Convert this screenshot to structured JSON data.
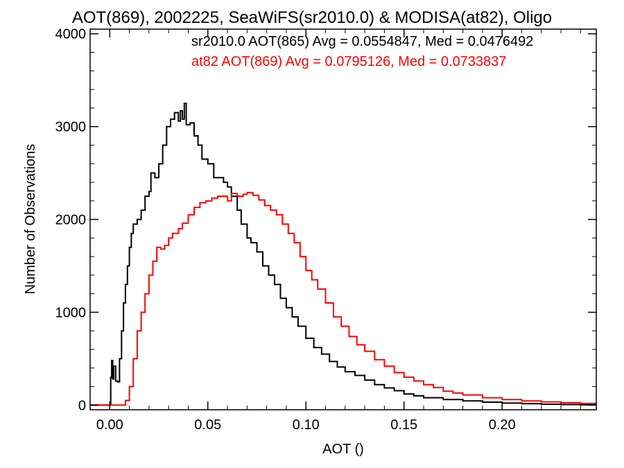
{
  "chart_data": {
    "type": "line",
    "title": "AOT(869), 2002225, SeaWiFS(sr2010.0) & MODISA(at82), Oligo",
    "xlabel": "AOT ()",
    "ylabel": "Number of Observations",
    "xlim": [
      -0.01,
      0.248
    ],
    "ylim": [
      -50,
      4050
    ],
    "xticks": [
      0.0,
      0.05,
      0.1,
      0.15,
      0.2
    ],
    "xtick_labels": [
      "0.00",
      "0.05",
      "0.10",
      "0.15",
      "0.20"
    ],
    "yticks": [
      0,
      1000,
      2000,
      3000,
      4000
    ],
    "ytick_labels": [
      "0",
      "1000",
      "2000",
      "3000",
      "4000"
    ],
    "grid": false,
    "series": [
      {
        "name": "sr2010.0",
        "color": "#000000",
        "label": "sr2010.0 AOT(865) Avg = 0.0554847, Med = 0.0476492",
        "points": [
          [
            -0.0095,
            0
          ],
          [
            0.0,
            0
          ],
          [
            0.0005,
            300
          ],
          [
            0.001,
            480
          ],
          [
            0.0015,
            280
          ],
          [
            0.002,
            420
          ],
          [
            0.003,
            260
          ],
          [
            0.004,
            250
          ],
          [
            0.005,
            500
          ],
          [
            0.006,
            800
          ],
          [
            0.007,
            1100
          ],
          [
            0.008,
            1300
          ],
          [
            0.009,
            1500
          ],
          [
            0.01,
            1700
          ],
          [
            0.011,
            1850
          ],
          [
            0.012,
            1950
          ],
          [
            0.014,
            2000
          ],
          [
            0.016,
            2100
          ],
          [
            0.018,
            2250
          ],
          [
            0.02,
            2300
          ],
          [
            0.021,
            2500
          ],
          [
            0.023,
            2450
          ],
          [
            0.025,
            2600
          ],
          [
            0.027,
            2800
          ],
          [
            0.029,
            3000
          ],
          [
            0.031,
            3080
          ],
          [
            0.033,
            3150
          ],
          [
            0.035,
            3060
          ],
          [
            0.036,
            3170
          ],
          [
            0.037,
            3080
          ],
          [
            0.038,
            3250
          ],
          [
            0.039,
            3020
          ],
          [
            0.041,
            3040
          ],
          [
            0.043,
            2900
          ],
          [
            0.045,
            2800
          ],
          [
            0.047,
            2650
          ],
          [
            0.05,
            2600
          ],
          [
            0.053,
            2450
          ],
          [
            0.055,
            2450
          ],
          [
            0.058,
            2400
          ],
          [
            0.06,
            2350
          ],
          [
            0.062,
            2250
          ],
          [
            0.065,
            2100
          ],
          [
            0.067,
            1950
          ],
          [
            0.07,
            1800
          ],
          [
            0.072,
            1750
          ],
          [
            0.075,
            1650
          ],
          [
            0.078,
            1500
          ],
          [
            0.081,
            1400
          ],
          [
            0.084,
            1300
          ],
          [
            0.087,
            1150
          ],
          [
            0.09,
            1050
          ],
          [
            0.093,
            950
          ],
          [
            0.096,
            850
          ],
          [
            0.1,
            720
          ],
          [
            0.104,
            620
          ],
          [
            0.108,
            550
          ],
          [
            0.112,
            470
          ],
          [
            0.116,
            410
          ],
          [
            0.12,
            360
          ],
          [
            0.125,
            320
          ],
          [
            0.13,
            270
          ],
          [
            0.135,
            220
          ],
          [
            0.14,
            185
          ],
          [
            0.145,
            155
          ],
          [
            0.15,
            120
          ],
          [
            0.155,
            100
          ],
          [
            0.16,
            80
          ],
          [
            0.17,
            60
          ],
          [
            0.18,
            45
          ],
          [
            0.19,
            32
          ],
          [
            0.2,
            22
          ],
          [
            0.21,
            15
          ],
          [
            0.22,
            10
          ],
          [
            0.23,
            6
          ],
          [
            0.24,
            3
          ],
          [
            0.248,
            2
          ]
        ]
      },
      {
        "name": "at82",
        "color": "#ff0000",
        "label": "at82 AOT(869) Avg = 0.0795126, Med = 0.0733837",
        "points": [
          [
            -0.0095,
            0
          ],
          [
            0.007,
            0
          ],
          [
            0.008,
            50
          ],
          [
            0.01,
            200
          ],
          [
            0.012,
            500
          ],
          [
            0.014,
            800
          ],
          [
            0.016,
            1000
          ],
          [
            0.018,
            1200
          ],
          [
            0.02,
            1400
          ],
          [
            0.022,
            1550
          ],
          [
            0.024,
            1700
          ],
          [
            0.026,
            1680
          ],
          [
            0.028,
            1720
          ],
          [
            0.03,
            1800
          ],
          [
            0.032,
            1850
          ],
          [
            0.035,
            1900
          ],
          [
            0.037,
            1960
          ],
          [
            0.04,
            2050
          ],
          [
            0.043,
            2130
          ],
          [
            0.046,
            2180
          ],
          [
            0.049,
            2200
          ],
          [
            0.052,
            2230
          ],
          [
            0.055,
            2250
          ],
          [
            0.058,
            2250
          ],
          [
            0.06,
            2200
          ],
          [
            0.062,
            2280
          ],
          [
            0.065,
            2250
          ],
          [
            0.068,
            2270
          ],
          [
            0.07,
            2290
          ],
          [
            0.073,
            2260
          ],
          [
            0.076,
            2210
          ],
          [
            0.079,
            2150
          ],
          [
            0.082,
            2100
          ],
          [
            0.085,
            2050
          ],
          [
            0.088,
            1950
          ],
          [
            0.091,
            1850
          ],
          [
            0.094,
            1750
          ],
          [
            0.097,
            1600
          ],
          [
            0.1,
            1450
          ],
          [
            0.103,
            1350
          ],
          [
            0.106,
            1250
          ],
          [
            0.11,
            1100
          ],
          [
            0.114,
            950
          ],
          [
            0.118,
            850
          ],
          [
            0.122,
            740
          ],
          [
            0.126,
            650
          ],
          [
            0.13,
            580
          ],
          [
            0.135,
            490
          ],
          [
            0.14,
            420
          ],
          [
            0.145,
            350
          ],
          [
            0.15,
            300
          ],
          [
            0.155,
            260
          ],
          [
            0.16,
            220
          ],
          [
            0.165,
            190
          ],
          [
            0.17,
            150
          ],
          [
            0.175,
            130
          ],
          [
            0.18,
            110
          ],
          [
            0.19,
            80
          ],
          [
            0.2,
            60
          ],
          [
            0.21,
            45
          ],
          [
            0.22,
            35
          ],
          [
            0.23,
            25
          ],
          [
            0.24,
            18
          ],
          [
            0.248,
            15
          ]
        ]
      }
    ]
  }
}
